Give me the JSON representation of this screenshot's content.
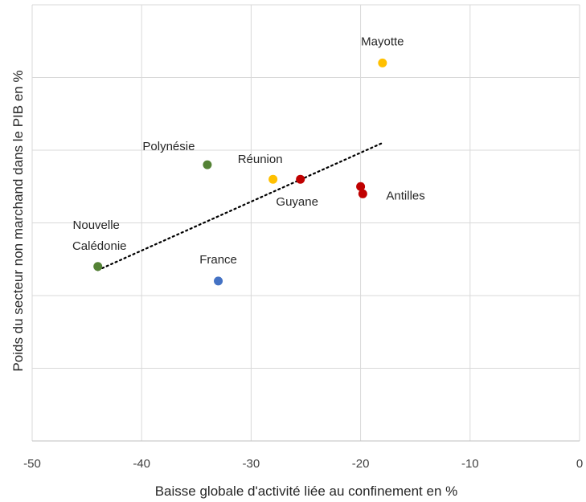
{
  "chart_data": {
    "type": "scatter",
    "title": "",
    "xlabel": "Baisse globale d'activité liée au confinement en %",
    "ylabel": "Poids du secteur non marchand dans le PIB en %",
    "xlim": [
      -50,
      0
    ],
    "x_ticks": [
      "-50",
      "-40",
      "-30",
      "-20",
      "-10",
      "0"
    ],
    "ylim": [
      0,
      6
    ],
    "y_gridlines": [
      1,
      2,
      3,
      4,
      5,
      6
    ],
    "grid": true,
    "legend": "none",
    "points": [
      {
        "label": "Mayotte",
        "x": -18,
        "y": 5.2,
        "color": "#FFC000"
      },
      {
        "label": "Polynésie",
        "x": -34,
        "y": 3.8,
        "color": "#548235"
      },
      {
        "label": "Réunion",
        "x": -28,
        "y": 3.6,
        "color": "#FFC000"
      },
      {
        "label": "Guyane",
        "x": -25.5,
        "y": 3.6,
        "color": "#C00000"
      },
      {
        "label": "Antilles",
        "x": -20,
        "y": 3.5,
        "color": "#C00000"
      },
      {
        "label": "",
        "x": -19.8,
        "y": 3.4,
        "color": "#C00000"
      },
      {
        "label": "Nouvelle Calédonie",
        "x": -44,
        "y": 2.4,
        "color": "#548235"
      },
      {
        "label": "France",
        "x": -33,
        "y": 2.2,
        "color": "#4472C4"
      }
    ],
    "trendline": {
      "style": "dotted",
      "color": "#000000",
      "from": [
        -44,
        2.35
      ],
      "to": [
        -18,
        4.1
      ]
    }
  }
}
